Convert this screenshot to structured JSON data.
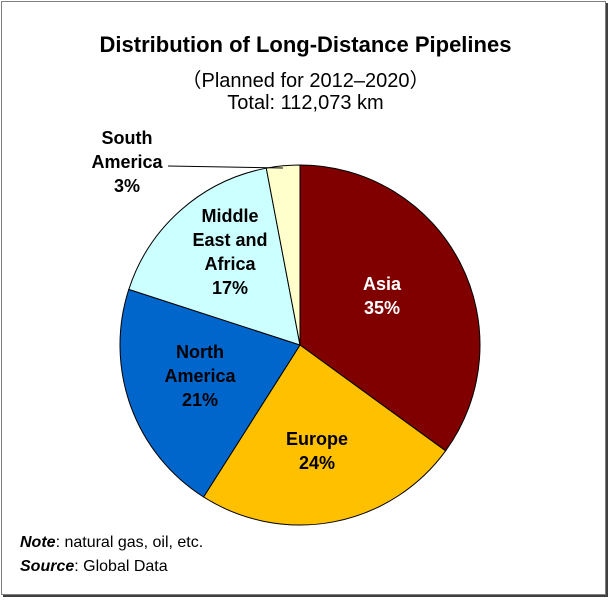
{
  "chart_data": {
    "type": "pie",
    "title": "Distribution of Long-Distance Pipelines",
    "subtitle": "（Planned for 2012–2020）",
    "total": "Total: 112,073 km",
    "start_angle": "12 o'clock",
    "direction": "clockwise",
    "slices": [
      {
        "label": [
          "Asia"
        ],
        "pct_label": "35%",
        "value": 35,
        "color": "#800000",
        "text_color": "#ffffff"
      },
      {
        "label": [
          "Europe"
        ],
        "pct_label": "24%",
        "value": 24,
        "color": "#FFC000",
        "text_color": "#000000"
      },
      {
        "label": [
          "North",
          "America"
        ],
        "pct_label": "21%",
        "value": 21,
        "color": "#0066CC",
        "text_color": "#000000"
      },
      {
        "label": [
          "Middle",
          "East and",
          "Africa"
        ],
        "pct_label": "17%",
        "value": 17,
        "color": "#CCFFFF",
        "text_color": "#000000"
      },
      {
        "label": [
          "South",
          "America"
        ],
        "pct_label": "3%",
        "value": 3,
        "color": "#FFFFCC",
        "text_color": "#000000"
      }
    ]
  },
  "footer": {
    "note_label": "Note",
    "note_text": ": natural gas, oil, etc.",
    "source_label": "Source",
    "source_text": ": Global Data"
  }
}
